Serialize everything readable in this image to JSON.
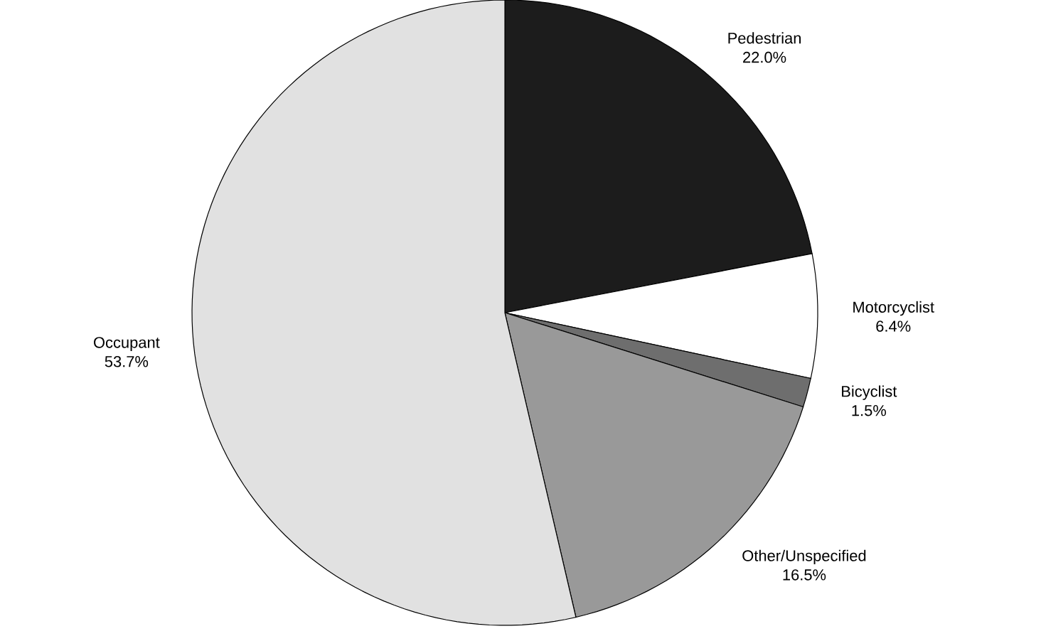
{
  "chart_data": {
    "type": "pie",
    "categories": [
      "Pedestrian",
      "Motorcyclist",
      "Bicyclist",
      "Other/Unspecified",
      "Occupant"
    ],
    "values": [
      22.0,
      6.4,
      1.5,
      16.5,
      53.7
    ],
    "value_labels": [
      "22.0%",
      "6.4%",
      "1.5%",
      "16.5%",
      "53.7%"
    ],
    "colors": [
      "#1c1c1c",
      "#ffffff",
      "#6e6e6e",
      "#999999",
      "#e1e1e1"
    ]
  }
}
